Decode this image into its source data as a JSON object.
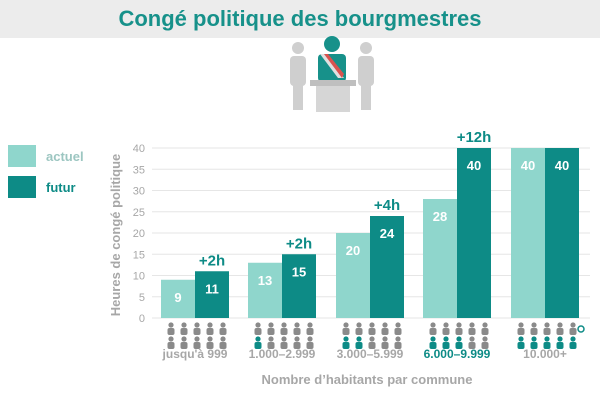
{
  "header": {
    "title": "Congé politique des bourgmestres"
  },
  "illustration": {
    "icon": "mayor-at-podium-icon"
  },
  "legend": {
    "items": [
      {
        "label": "actuel",
        "color": "#8fd6cc"
      },
      {
        "label": "futur",
        "color": "#0d8b86"
      }
    ]
  },
  "colors": {
    "accent": "#17918a",
    "actuel": "#8fd6cc",
    "futur": "#0d8b86",
    "muted_text": "#a7a7a7",
    "population_icon_light": "#8a8a8a"
  },
  "chart_data": {
    "type": "bar",
    "title": "",
    "xlabel": "Nombre d’habitants par commune",
    "ylabel": "Heures de congé politique",
    "ylim": [
      0,
      40
    ],
    "yticks": [
      0,
      5,
      10,
      15,
      20,
      25,
      30,
      35,
      40
    ],
    "grid": true,
    "legend_position": "left",
    "categories": [
      "jusqu'à 999",
      "1.000–2.999",
      "3.000–5.999",
      "6.000–9.999",
      "10.000+"
    ],
    "highlighted_category": "6.000–9.999",
    "series": [
      {
        "name": "actuel",
        "values": [
          9,
          13,
          20,
          28,
          40
        ]
      },
      {
        "name": "futur",
        "values": [
          11,
          15,
          24,
          40,
          40
        ]
      }
    ],
    "increase_labels": [
      "+2h",
      "+2h",
      "+4h",
      "+12h",
      ""
    ],
    "population_icons_highlighted": [
      0,
      1,
      2,
      3,
      5
    ]
  }
}
